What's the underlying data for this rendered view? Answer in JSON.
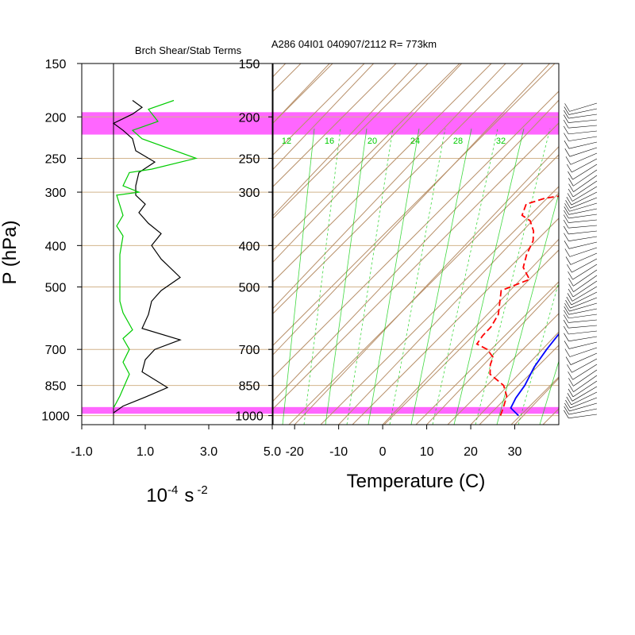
{
  "header": {
    "left_title": "Brch Shear/Stab Terms",
    "right_title": "A286 04I01 040907/2112 R= 773km"
  },
  "colors": {
    "highlight": "#ff00ff",
    "isobar": "#d2b48c",
    "skew": "#b8906a",
    "mixing": "#00cc00",
    "temperature": "#0000ff",
    "dewpoint": "#ff0000",
    "shear": "#000000",
    "stability": "#00cc00"
  },
  "chart_data": [
    {
      "type": "line",
      "title": "Brch Shear/Stab Terms",
      "ylabel": "P (hPa)",
      "xlabel": "10⁻⁴ s⁻²",
      "xlabel_base": "10",
      "xlabel_exp": "-4",
      "xlabel_unit": "s",
      "xlabel_unit_exp": "-2",
      "y_scale": "log",
      "ylim": [
        1050,
        150
      ],
      "xlim": [
        -1,
        5
      ],
      "x_ticks": [
        "-1.0",
        "1.0",
        "3.0",
        "5.0"
      ],
      "x_tick_values": [
        -1,
        1,
        3,
        5
      ],
      "y_ticks": [
        "150",
        "200",
        "250",
        "300",
        "400",
        "500",
        "700",
        "850",
        "1000"
      ],
      "y_tick_values": [
        150,
        200,
        250,
        300,
        400,
        500,
        700,
        850,
        1000
      ],
      "series": [
        {
          "key": "shear",
          "color": "#000000",
          "points": [
            [
              0.6,
              183
            ],
            [
              0.9,
              190
            ],
            [
              0.6,
              197
            ],
            [
              0.0,
              207
            ],
            [
              0.3,
              215
            ],
            [
              0.6,
              225
            ],
            [
              0.7,
              240
            ],
            [
              1.3,
              255
            ],
            [
              0.8,
              270
            ],
            [
              0.7,
              290
            ],
            [
              0.7,
              305
            ],
            [
              1.0,
              320
            ],
            [
              0.8,
              335
            ],
            [
              1.1,
              355
            ],
            [
              1.5,
              375
            ],
            [
              1.2,
              400
            ],
            [
              1.5,
              430
            ],
            [
              2.1,
              475
            ],
            [
              1.5,
              510
            ],
            [
              1.2,
              540
            ],
            [
              1.1,
              580
            ],
            [
              0.9,
              625
            ],
            [
              2.1,
              665
            ],
            [
              1.3,
              700
            ],
            [
              1.0,
              740
            ],
            [
              0.9,
              790
            ],
            [
              1.7,
              860
            ],
            [
              1.0,
              905
            ],
            [
              0.3,
              950
            ],
            [
              0.0,
              985
            ]
          ]
        },
        {
          "key": "stability",
          "color": "#00cc00",
          "points": [
            [
              1.9,
              183
            ],
            [
              1.1,
              192
            ],
            [
              1.4,
              205
            ],
            [
              0.6,
              215
            ],
            [
              0.9,
              225
            ],
            [
              2.6,
              250
            ],
            [
              1.2,
              265
            ],
            [
              0.5,
              270
            ],
            [
              0.3,
              290
            ],
            [
              0.8,
              300
            ],
            [
              0.1,
              305
            ],
            [
              0.3,
              340
            ],
            [
              0.1,
              360
            ],
            [
              0.3,
              380
            ],
            [
              0.2,
              420
            ],
            [
              0.2,
              475
            ],
            [
              0.2,
              540
            ],
            [
              0.3,
              575
            ],
            [
              0.6,
              630
            ],
            [
              0.3,
              660
            ],
            [
              0.5,
              700
            ],
            [
              0.3,
              750
            ],
            [
              0.5,
              800
            ],
            [
              0.2,
              900
            ],
            [
              0.0,
              960
            ]
          ]
        }
      ],
      "highlight_bands_hpa": [
        [
          195,
          220
        ],
        [
          955,
          990
        ]
      ]
    },
    {
      "type": "line",
      "title": "A286 04I01 040907/2112 R= 773km",
      "xlabel": "Temperature (C)",
      "y_scale": "log",
      "ylim": [
        1050,
        150
      ],
      "xlim": [
        -24.9,
        40
      ],
      "x_ticks": [
        "-20",
        "-10",
        "0",
        "10",
        "20",
        "30"
      ],
      "x_tick_values": [
        -20,
        -10,
        0,
        10,
        20,
        30
      ],
      "y_ticks": [
        "150",
        "200",
        "250",
        "300",
        "400",
        "500",
        "700",
        "850",
        "1000"
      ],
      "y_tick_values": [
        150,
        200,
        250,
        300,
        400,
        500,
        700,
        850,
        1000
      ],
      "mixing_ratio_labels": [
        "12",
        "16",
        "20",
        "24",
        "28",
        "32"
      ],
      "series": [
        {
          "key": "temperature",
          "color": "#0000ff",
          "style": "solid",
          "points": [
            [
              28.9,
              1000
            ],
            [
              25.5,
              960
            ],
            [
              24.5,
              910
            ],
            [
              23.8,
              850
            ],
            [
              22.0,
              770
            ],
            [
              21.0,
              700
            ],
            [
              20.2,
              620
            ],
            [
              16.0,
              550
            ],
            [
              14.5,
              500
            ],
            [
              13.2,
              460
            ],
            [
              12.8,
              420
            ],
            [
              11.5,
              380
            ],
            [
              10.0,
              340
            ],
            [
              8.5,
              310
            ],
            [
              6.5,
              280
            ],
            [
              3.5,
              250
            ],
            [
              2.0,
              230
            ],
            [
              -0.5,
              210
            ],
            [
              -2.0,
              195
            ],
            [
              -3.7,
              178
            ]
          ]
        },
        {
          "key": "dewpoint",
          "color": "#ff0000",
          "style": "dashed",
          "points": [
            [
              24.8,
              1000
            ],
            [
              23.8,
              960
            ],
            [
              22.0,
              900
            ],
            [
              19.0,
              850
            ],
            [
              13.5,
              800
            ],
            [
              11.5,
              760
            ],
            [
              10.5,
              730
            ],
            [
              7.5,
              700
            ],
            [
              4.0,
              680
            ],
            [
              3.5,
              650
            ],
            [
              3.5,
              620
            ],
            [
              2.5,
              580
            ],
            [
              0.0,
              540
            ],
            [
              -2.0,
              510
            ],
            [
              2.0,
              480
            ],
            [
              -2.0,
              450
            ],
            [
              -4.0,
              420
            ],
            [
              -5.5,
              390
            ],
            [
              -7.5,
              370
            ],
            [
              -10.5,
              350
            ],
            [
              -13.5,
              340
            ],
            [
              -15.0,
              320
            ],
            [
              -12.0,
              310
            ],
            [
              -8.0,
              305
            ],
            [
              -7.0,
              290
            ],
            [
              -12.0,
              280
            ],
            [
              -13.5,
              275
            ],
            [
              -10.0,
              265
            ],
            [
              -4.0,
              255
            ],
            [
              -2.5,
              240
            ],
            [
              -3.0,
              225
            ],
            [
              -5.0,
              210
            ],
            [
              -7.5,
              205
            ]
          ]
        }
      ],
      "highlight_bands_hpa": [
        [
          195,
          220
        ],
        [
          955,
          990
        ]
      ]
    }
  ]
}
